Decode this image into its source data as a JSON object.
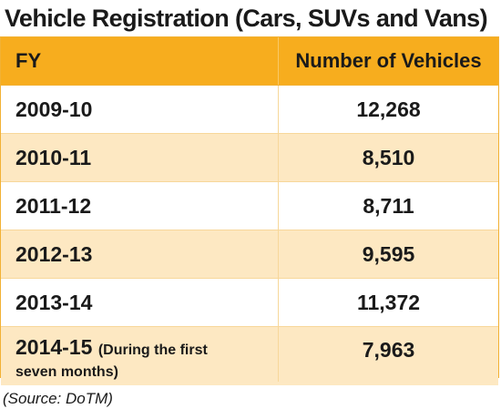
{
  "title": "Vehicle Registration (Cars, SUVs and Vans)",
  "source": "(Source: DoTM)",
  "colors": {
    "header_bg": "#f7ad1e",
    "stripe_bg": "#fde8c2",
    "border": "#f2b134"
  },
  "chart_data": {
    "type": "table",
    "title": "Vehicle Registration (Cars, SUVs and Vans)",
    "columns": [
      "FY",
      "Number of Vehicles"
    ],
    "rows": [
      {
        "fy": "2009-10",
        "note": "",
        "vehicles": "12,268"
      },
      {
        "fy": "2010-11",
        "note": "",
        "vehicles": "8,510"
      },
      {
        "fy": "2011-12",
        "note": "",
        "vehicles": "8,711"
      },
      {
        "fy": "2012-13",
        "note": "",
        "vehicles": "9,595"
      },
      {
        "fy": "2013-14",
        "note": "",
        "vehicles": "11,372"
      },
      {
        "fy": "2014-15",
        "note_line1": "(During the first",
        "note_line2": "seven months)",
        "vehicles": "7,963"
      }
    ],
    "values": [
      12268,
      8510,
      8711,
      9595,
      11372,
      7963
    ]
  }
}
